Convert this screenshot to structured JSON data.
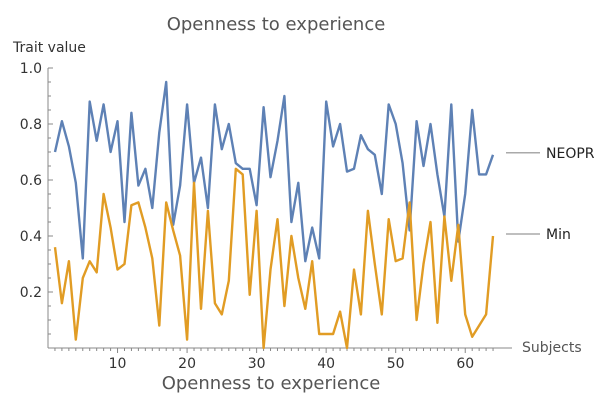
{
  "chart_data": {
    "type": "line",
    "title": "Openness to experience",
    "subtitle": "Openness to experience",
    "xlabel": "Subjects",
    "ylabel": "Trait value",
    "xlim": [
      0,
      65
    ],
    "ylim": [
      0,
      1.0
    ],
    "x_ticks": [
      10,
      20,
      30,
      40,
      50,
      60
    ],
    "x_tick_labels": [
      "10",
      "20",
      "30",
      "40",
      "50",
      "60"
    ],
    "y_ticks": [
      0.2,
      0.4,
      0.6,
      0.8,
      1.0
    ],
    "y_tick_labels": [
      "0.2",
      "0.4",
      "0.6",
      "0.8",
      "1.0"
    ],
    "grid": false,
    "legend": "right",
    "x": [
      1,
      2,
      3,
      4,
      5,
      6,
      7,
      8,
      9,
      10,
      11,
      12,
      13,
      14,
      15,
      16,
      17,
      18,
      19,
      20,
      21,
      22,
      23,
      24,
      25,
      26,
      27,
      28,
      29,
      30,
      31,
      32,
      33,
      34,
      35,
      36,
      37,
      38,
      39,
      40,
      41,
      42,
      43,
      44,
      45,
      46,
      47,
      48,
      49,
      50,
      51,
      52,
      53,
      54,
      55,
      56,
      57,
      58,
      59,
      60,
      61,
      62,
      63,
      64
    ],
    "series": [
      {
        "name": "NEOPR",
        "color": "#5E81B5",
        "values": [
          0.7,
          0.81,
          0.72,
          0.59,
          0.32,
          0.88,
          0.74,
          0.87,
          0.7,
          0.81,
          0.45,
          0.84,
          0.58,
          0.64,
          0.5,
          0.77,
          0.95,
          0.44,
          0.58,
          0.87,
          0.59,
          0.68,
          0.5,
          0.87,
          0.71,
          0.8,
          0.66,
          0.64,
          0.64,
          0.51,
          0.86,
          0.61,
          0.74,
          0.9,
          0.45,
          0.59,
          0.31,
          0.43,
          0.32,
          0.88,
          0.72,
          0.8,
          0.63,
          0.64,
          0.76,
          0.71,
          0.69,
          0.55,
          0.87,
          0.8,
          0.66,
          0.42,
          0.81,
          0.65,
          0.8,
          0.62,
          0.47,
          0.87,
          0.38,
          0.55,
          0.85,
          0.62,
          0.62,
          0.69
        ]
      },
      {
        "name": "Min",
        "color": "#E19C24",
        "values": [
          0.36,
          0.16,
          0.31,
          0.03,
          0.25,
          0.31,
          0.27,
          0.55,
          0.43,
          0.28,
          0.3,
          0.51,
          0.52,
          0.43,
          0.32,
          0.08,
          0.52,
          0.42,
          0.33,
          0.03,
          0.59,
          0.14,
          0.49,
          0.16,
          0.12,
          0.24,
          0.64,
          0.62,
          0.19,
          0.49,
          0.0,
          0.28,
          0.46,
          0.15,
          0.4,
          0.25,
          0.14,
          0.31,
          0.05,
          0.05,
          0.05,
          0.13,
          0.0,
          0.28,
          0.12,
          0.49,
          0.3,
          0.12,
          0.46,
          0.31,
          0.32,
          0.52,
          0.1,
          0.3,
          0.45,
          0.09,
          0.47,
          0.24,
          0.44,
          0.12,
          0.04,
          0.08,
          0.12,
          0.4
        ]
      }
    ]
  }
}
